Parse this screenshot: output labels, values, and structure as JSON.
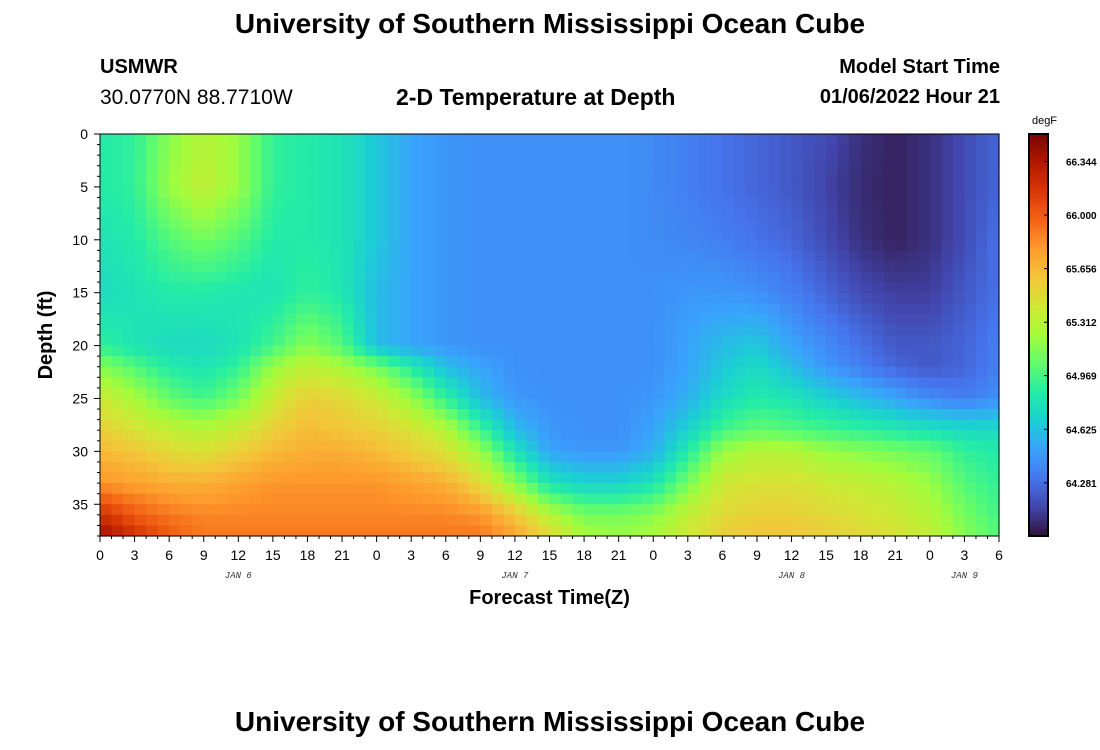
{
  "header": {
    "title": "University of Southern Mississippi Ocean Cube",
    "station_name": "USMWR",
    "station_coords": "30.0770N  88.7710W",
    "plot_title": "2-D Temperature at Depth",
    "model_start_label": "Model Start Time",
    "model_start_value": "01/06/2022 Hour 21"
  },
  "footer": {
    "title": "University of Southern Mississippi Ocean Cube"
  },
  "chart_data": {
    "type": "heatmap",
    "title": "2-D Temperature at Depth",
    "xlabel": "Forecast Time(Z)",
    "ylabel": "Depth (ft)",
    "x_range_hours": [
      0,
      78
    ],
    "y_range": [
      0,
      38
    ],
    "y_inverted": true,
    "x_tick_labels": [
      "0",
      "3",
      "6",
      "9",
      "12",
      "15",
      "18",
      "21",
      "0",
      "3",
      "6",
      "9",
      "12",
      "15",
      "18",
      "21",
      "0",
      "3",
      "6",
      "9",
      "12",
      "15",
      "18",
      "21",
      "0",
      "3",
      "6"
    ],
    "day_labels": [
      {
        "label": "JAN 6",
        "hour": 12
      },
      {
        "label": "JAN 7",
        "hour": 36
      },
      {
        "label": "JAN 8",
        "hour": 60
      },
      {
        "label": "JAN 9",
        "hour": 75
      }
    ],
    "y_tick_labels": [
      "0",
      "5",
      "10",
      "15",
      "20",
      "25",
      "30",
      "35"
    ],
    "y_ticks": [
      0,
      5,
      10,
      15,
      20,
      25,
      30,
      35
    ],
    "colorbar": {
      "unit": "degF",
      "min": 63.94,
      "max": 66.52,
      "tick_values": [
        64.281,
        64.625,
        64.969,
        65.312,
        65.656,
        66.0,
        66.344
      ],
      "tick_labels": [
        "64.281",
        "64.625",
        "64.969",
        "65.312",
        "65.656",
        "66.000",
        "66.344"
      ],
      "colors": [
        "#30123b",
        "#4145ab",
        "#4675ed",
        "#39a2fc",
        "#1bcfd4",
        "#24eca6",
        "#61fc6c",
        "#a4fc3b",
        "#d1e834",
        "#f3c63a",
        "#fe9b2d",
        "#f36315",
        "#d93806",
        "#b11901",
        "#7a0402"
      ]
    },
    "temperature_grid": {
      "x_hours": [
        0,
        3,
        6,
        9,
        12,
        15,
        18,
        21,
        24,
        27,
        30,
        33,
        36,
        39,
        42,
        45,
        48,
        51,
        54,
        57,
        60,
        63,
        66,
        69,
        72,
        75,
        78
      ],
      "depths_ft": [
        0,
        5,
        10,
        15,
        20,
        22,
        25,
        28,
        30,
        33,
        36,
        38
      ],
      "values": [
        [
          64.85,
          64.9,
          65.15,
          65.3,
          65.2,
          64.9,
          64.85,
          64.8,
          64.65,
          64.5,
          64.45,
          64.42,
          64.42,
          64.42,
          64.42,
          64.42,
          64.4,
          64.35,
          64.3,
          64.25,
          64.2,
          64.15,
          64.05,
          64.0,
          64.05,
          64.15,
          64.25
        ],
        [
          64.85,
          64.9,
          65.2,
          65.35,
          65.2,
          64.9,
          64.85,
          64.8,
          64.65,
          64.5,
          64.45,
          64.42,
          64.42,
          64.42,
          64.42,
          64.42,
          64.4,
          64.35,
          64.3,
          64.25,
          64.2,
          64.12,
          64.03,
          64.0,
          64.05,
          64.15,
          64.25
        ],
        [
          64.8,
          64.85,
          65.0,
          65.1,
          65.0,
          64.85,
          64.85,
          64.8,
          64.65,
          64.5,
          64.45,
          64.42,
          64.42,
          64.42,
          64.42,
          64.42,
          64.4,
          64.38,
          64.35,
          64.3,
          64.25,
          64.15,
          64.05,
          64.0,
          64.05,
          64.15,
          64.3
        ],
        [
          64.75,
          64.8,
          64.85,
          64.85,
          64.82,
          64.8,
          64.9,
          64.82,
          64.6,
          64.5,
          64.45,
          64.42,
          64.42,
          64.42,
          64.42,
          64.42,
          64.42,
          64.45,
          64.45,
          64.42,
          64.35,
          64.25,
          64.15,
          64.1,
          64.1,
          64.2,
          64.3
        ],
        [
          64.9,
          64.8,
          64.75,
          64.75,
          64.8,
          64.95,
          65.15,
          65.0,
          64.6,
          64.5,
          64.45,
          64.42,
          64.42,
          64.42,
          64.42,
          64.42,
          64.42,
          64.5,
          64.6,
          64.65,
          64.5,
          64.4,
          64.3,
          64.2,
          64.2,
          64.25,
          64.35
        ],
        [
          65.15,
          65.0,
          64.85,
          64.8,
          64.9,
          65.2,
          65.35,
          65.25,
          65.1,
          64.85,
          64.6,
          64.5,
          64.42,
          64.42,
          64.42,
          64.42,
          64.42,
          64.5,
          64.65,
          64.75,
          64.6,
          64.45,
          64.35,
          64.25,
          64.2,
          64.25,
          64.35
        ],
        [
          65.4,
          65.25,
          65.05,
          64.95,
          65.1,
          65.4,
          65.55,
          65.5,
          65.4,
          65.2,
          64.9,
          64.6,
          64.45,
          64.42,
          64.42,
          64.42,
          64.45,
          64.55,
          64.75,
          64.85,
          64.8,
          64.7,
          64.6,
          64.5,
          64.4,
          64.35,
          64.42
        ],
        [
          65.55,
          65.45,
          65.35,
          65.3,
          65.4,
          65.55,
          65.65,
          65.6,
          65.55,
          65.45,
          65.3,
          64.95,
          64.6,
          64.45,
          64.42,
          64.42,
          64.5,
          64.7,
          64.95,
          65.05,
          65.0,
          64.95,
          64.9,
          64.85,
          64.8,
          64.75,
          64.75
        ],
        [
          65.65,
          65.6,
          65.5,
          65.45,
          65.55,
          65.65,
          65.7,
          65.7,
          65.65,
          65.55,
          65.45,
          65.2,
          64.8,
          64.5,
          64.45,
          64.45,
          64.55,
          64.85,
          65.2,
          65.3,
          65.3,
          65.2,
          65.15,
          65.1,
          65.05,
          64.9,
          64.85
        ],
        [
          65.8,
          65.75,
          65.7,
          65.7,
          65.75,
          65.8,
          65.8,
          65.8,
          65.8,
          65.75,
          65.7,
          65.5,
          65.15,
          64.8,
          64.7,
          64.7,
          64.8,
          65.1,
          65.4,
          65.45,
          65.45,
          65.4,
          65.35,
          65.3,
          65.2,
          65.0,
          64.9
        ],
        [
          66.2,
          66.0,
          65.9,
          65.85,
          65.85,
          65.85,
          65.85,
          65.85,
          65.85,
          65.85,
          65.85,
          65.8,
          65.6,
          65.3,
          65.1,
          65.1,
          65.15,
          65.35,
          65.5,
          65.55,
          65.55,
          65.5,
          65.45,
          65.4,
          65.3,
          65.1,
          64.95
        ],
        [
          66.4,
          66.2,
          66.0,
          65.9,
          65.9,
          65.9,
          65.9,
          65.9,
          65.9,
          65.9,
          65.9,
          65.9,
          65.75,
          65.5,
          65.25,
          65.2,
          65.25,
          65.4,
          65.55,
          65.6,
          65.6,
          65.55,
          65.5,
          65.45,
          65.35,
          65.15,
          65.0
        ]
      ]
    }
  }
}
